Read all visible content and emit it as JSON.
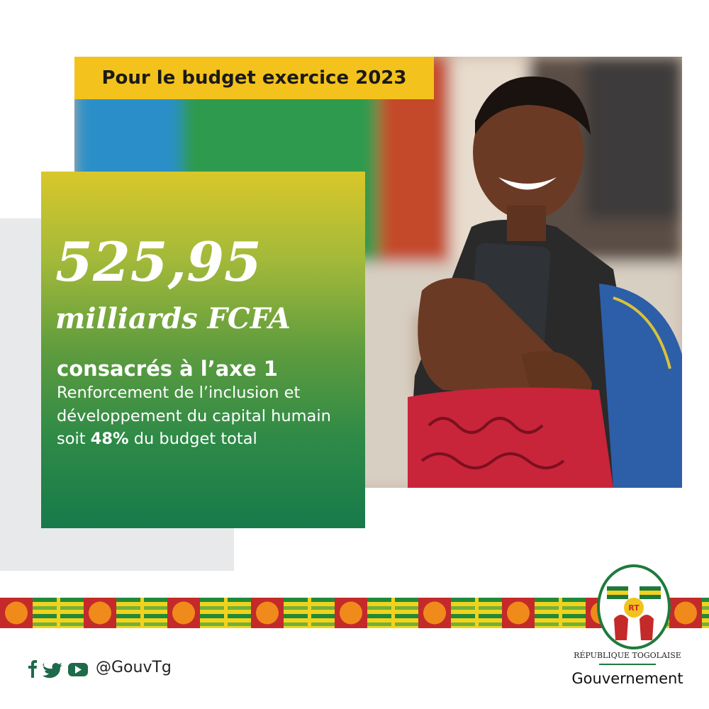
{
  "header": {
    "title": "Pour le budget exercice 2023"
  },
  "headline": {
    "amount": "525,95",
    "unit": "milliards FCFA"
  },
  "body": {
    "subtitle": "consacrés à l’axe 1",
    "text_before": "Renforcement de l’inclusion et développement du capital humain soit ",
    "highlight": "48%",
    "text_after": " du budget total"
  },
  "footer": {
    "handle": "@GouvTg",
    "emblem_initials": "RT",
    "emblem_label": "RÉPUBLIQUE TOGOLAISE",
    "government": "Gouvernement"
  }
}
